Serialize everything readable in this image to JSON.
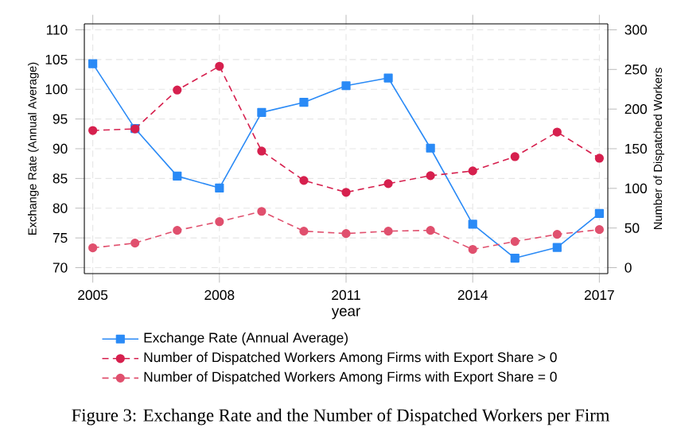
{
  "chart_data": {
    "type": "line",
    "xlabel": "year",
    "ylabel": "Exchange Rate (Annual Average)",
    "y2label": "Number of Dispatched Workers",
    "x": [
      2005,
      2006,
      2007,
      2008,
      2009,
      2010,
      2011,
      2012,
      2013,
      2014,
      2015,
      2016,
      2017
    ],
    "series": [
      {
        "name": "Exchange Rate (Annual Average)",
        "color": "#2a8af6",
        "marker": "square",
        "line_style": "solid",
        "values": [
          104.3,
          93.4,
          85.4,
          83.4,
          96.1,
          97.8,
          100.6,
          101.9,
          90.1,
          77.3,
          71.6,
          73.4,
          79.1
        ]
      },
      {
        "name": "Number of Dispatched Workers Among Firms with Export Share > 0",
        "color": "#d6204e",
        "marker": "circle",
        "line_style": "dashed",
        "axis": "y2",
        "values": [
          173,
          175,
          224,
          254,
          147,
          110,
          95,
          106,
          116,
          122,
          140,
          171,
          138
        ]
      },
      {
        "name": "Number of Dispatched Workers Among Firms with Export Share = 0",
        "color": "#e0506e",
        "marker": "circle",
        "line_style": "dashed",
        "axis": "y2",
        "values": [
          25,
          31,
          47,
          58,
          71,
          46,
          43,
          46,
          47,
          23,
          33,
          42,
          48
        ]
      }
    ],
    "xlim": [
      2004.8,
      2017.2
    ],
    "xticks": [
      2005,
      2008,
      2011,
      2014,
      2017
    ],
    "ylim": [
      69,
      111
    ],
    "yticks": [
      70,
      75,
      80,
      85,
      90,
      95,
      100,
      105,
      110
    ],
    "y2lim": [
      -7.5,
      307.5
    ],
    "y2ticks": [
      0,
      50,
      100,
      150,
      200,
      250,
      300
    ],
    "grid": true,
    "legend": "bottom",
    "annotations": [
      "Figure 3: Exchange Rate and the Number of Dispatched Workers per Firm"
    ]
  }
}
